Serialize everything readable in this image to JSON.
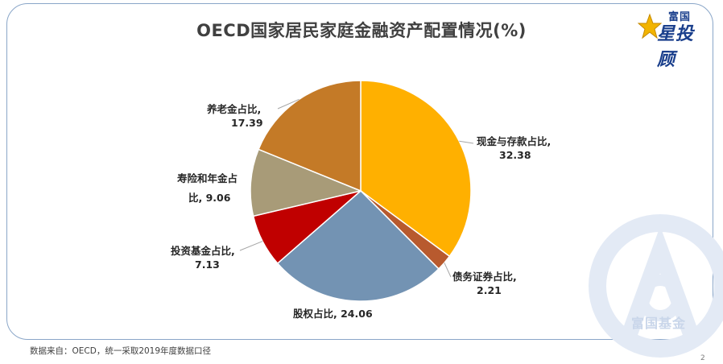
{
  "title": "OECD国家居民家庭金融资产配置情况(%)",
  "logo": {
    "small": "富国",
    "main": "星投顾"
  },
  "watermark_text": "富国基金",
  "source": "数据来自：OECD，统一采取2019年度数据口径",
  "page_number": "2",
  "chart_data": {
    "type": "pie",
    "title": "OECD国家居民家庭金融资产配置情况(%)",
    "slices": [
      {
        "name": "现金与存款占比",
        "value": 32.38,
        "color": "#ffb000",
        "label_line1": "现金与存款占比,",
        "label_line2": "32.38"
      },
      {
        "name": "债务证券占比",
        "value": 2.21,
        "color": "#b85a2e",
        "label_line1": "债务证券占比,",
        "label_line2": "2.21"
      },
      {
        "name": "股权占比",
        "value": 24.06,
        "color": "#7393b3",
        "label_line1": "股权占比, 24.06",
        "label_line2": ""
      },
      {
        "name": "投资基金占比",
        "value": 7.13,
        "color": "#c00000",
        "label_line1": "投资基金占比,",
        "label_line2": "7.13"
      },
      {
        "name": "寿险和年金占比",
        "value": 9.06,
        "color": "#a89b78",
        "label_line1": "寿险和年金占",
        "label_line2": "比, 9.06"
      },
      {
        "name": "养老金占比",
        "value": 17.39,
        "color": "#c47a27",
        "label_line1": "养老金占比,",
        "label_line2": "17.39"
      }
    ]
  }
}
